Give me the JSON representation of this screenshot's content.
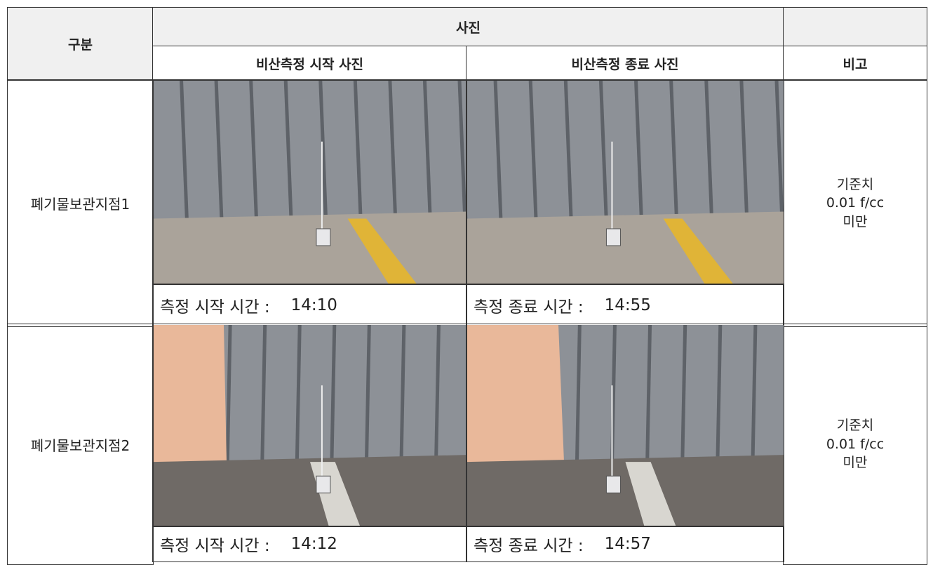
{
  "header": {
    "category": "구분",
    "photos": "사진",
    "start_photo": "비산측정 시작 사진",
    "end_photo": "비산측정 종료 사진",
    "remarks": "비고"
  },
  "rows": [
    {
      "location": "폐기물보관지점1",
      "start_label": "측정 시작 시간 :",
      "start_time": "14:10",
      "end_label": "측정 종료 시간 :",
      "end_time": "14:55",
      "remark": [
        "기준치",
        "0.01 f/cc",
        "미만"
      ]
    },
    {
      "location": "폐기물보관지점2",
      "start_label": "측정 시작 시간 :",
      "start_time": "14:12",
      "end_label": "측정 종료 시간 :",
      "end_time": "14:57",
      "remark": [
        "기준치",
        "0.01 f/cc",
        "미만"
      ]
    }
  ]
}
